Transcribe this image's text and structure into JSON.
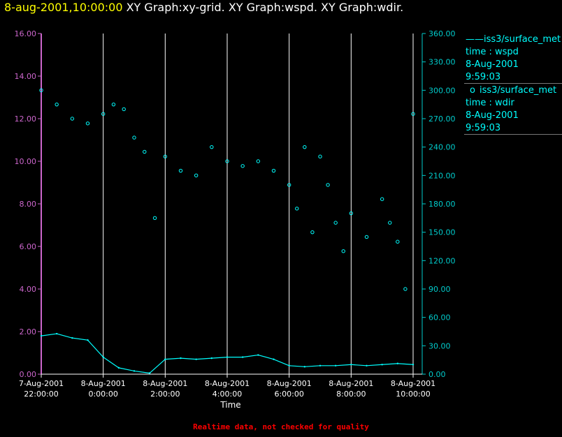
{
  "title": {
    "timestamp": "8-aug-2001,10:00:00",
    "graphs": "XY Graph:xy-grid.  XY Graph:wspd.  XY Graph:wdir."
  },
  "legend": [
    {
      "marker": "——",
      "source": "iss3/surface_met",
      "field": "time : wspd",
      "date": "8-Aug-2001",
      "time": "9:59:03"
    },
    {
      "marker": "o",
      "source": "iss3/surface_met",
      "field": "time : wdir",
      "date": "8-Aug-2001",
      "time": "9:59:03"
    }
  ],
  "footer": "Realtime data, not checked for quality",
  "colors": {
    "left_axis": "#cc66cc",
    "right_axis": "#00cccc",
    "data": "#00ffff",
    "grid": "#ffffff",
    "title_time": "#ffff00"
  },
  "chart_data": {
    "type": "line",
    "xlabel": "Time",
    "x_range": [
      "2001-08-07 22:00",
      "2001-08-08 10:00"
    ],
    "x_ticks": [
      {
        "date": "7-Aug-2001",
        "time": "22:00:00"
      },
      {
        "date": "8-Aug-2001",
        "time": "0:00:00"
      },
      {
        "date": "8-Aug-2001",
        "time": "2:00:00"
      },
      {
        "date": "8-Aug-2001",
        "time": "4:00:00"
      },
      {
        "date": "8-Aug-2001",
        "time": "6:00:00"
      },
      {
        "date": "8-Aug-2001",
        "time": "8:00:00"
      },
      {
        "date": "8-Aug-2001",
        "time": "10:00:00"
      }
    ],
    "y_left": {
      "range": [
        0,
        16
      ],
      "ticks": [
        "0.00",
        "2.00",
        "4.00",
        "6.00",
        "8.00",
        "10.00",
        "12.00",
        "14.00",
        "16.00"
      ]
    },
    "y_right": {
      "range": [
        0,
        360
      ],
      "ticks": [
        "0.00",
        "30.00",
        "60.00",
        "90.00",
        "120.00",
        "150.00",
        "180.00",
        "210.00",
        "240.00",
        "270.00",
        "300.00",
        "330.00",
        "360.00"
      ]
    },
    "grid": "vertical lines at each x tick",
    "series": [
      {
        "axis": "left",
        "style": "line",
        "x": [
          "2001-08-07 22:00",
          "2001-08-07 22:30",
          "2001-08-07 23:00",
          "2001-08-07 23:30",
          "2001-08-08 00:00",
          "2001-08-08 00:30",
          "2001-08-08 01:00",
          "2001-08-08 01:30",
          "2001-08-08 02:00",
          "2001-08-08 02:30",
          "2001-08-08 03:00",
          "2001-08-08 03:30",
          "2001-08-08 04:00",
          "2001-08-08 04:30",
          "2001-08-08 05:00",
          "2001-08-08 05:30",
          "2001-08-08 06:00",
          "2001-08-08 06:30",
          "2001-08-08 07:00",
          "2001-08-08 07:30",
          "2001-08-08 08:00",
          "2001-08-08 08:30",
          "2001-08-08 09:00",
          "2001-08-08 09:30",
          "2001-08-08 10:00"
        ],
        "values": [
          1.8,
          1.9,
          1.7,
          1.6,
          0.8,
          0.3,
          0.15,
          0.05,
          0.7,
          0.75,
          0.7,
          0.75,
          0.8,
          0.8,
          0.9,
          0.7,
          0.4,
          0.35,
          0.4,
          0.4,
          0.45,
          0.4,
          0.45,
          0.5,
          0.45
        ]
      },
      {
        "axis": "right",
        "style": "points",
        "x": [
          "2001-08-07 22:00",
          "2001-08-07 22:30",
          "2001-08-07 23:00",
          "2001-08-07 23:30",
          "2001-08-08 00:00",
          "2001-08-08 00:20",
          "2001-08-08 00:40",
          "2001-08-08 01:00",
          "2001-08-08 01:20",
          "2001-08-08 01:40",
          "2001-08-08 02:00",
          "2001-08-08 02:30",
          "2001-08-08 03:00",
          "2001-08-08 03:30",
          "2001-08-08 04:00",
          "2001-08-08 04:30",
          "2001-08-08 05:00",
          "2001-08-08 05:30",
          "2001-08-08 06:00",
          "2001-08-08 06:15",
          "2001-08-08 06:30",
          "2001-08-08 06:45",
          "2001-08-08 07:00",
          "2001-08-08 07:15",
          "2001-08-08 07:30",
          "2001-08-08 07:45",
          "2001-08-08 08:00",
          "2001-08-08 08:30",
          "2001-08-08 09:00",
          "2001-08-08 09:15",
          "2001-08-08 09:30",
          "2001-08-08 09:45",
          "2001-08-08 10:00"
        ],
        "values": [
          300,
          285,
          270,
          265,
          275,
          285,
          280,
          250,
          235,
          165,
          230,
          215,
          210,
          240,
          225,
          220,
          225,
          215,
          200,
          175,
          240,
          150,
          230,
          200,
          160,
          130,
          170,
          145,
          185,
          160,
          140,
          90,
          275
        ]
      }
    ]
  }
}
